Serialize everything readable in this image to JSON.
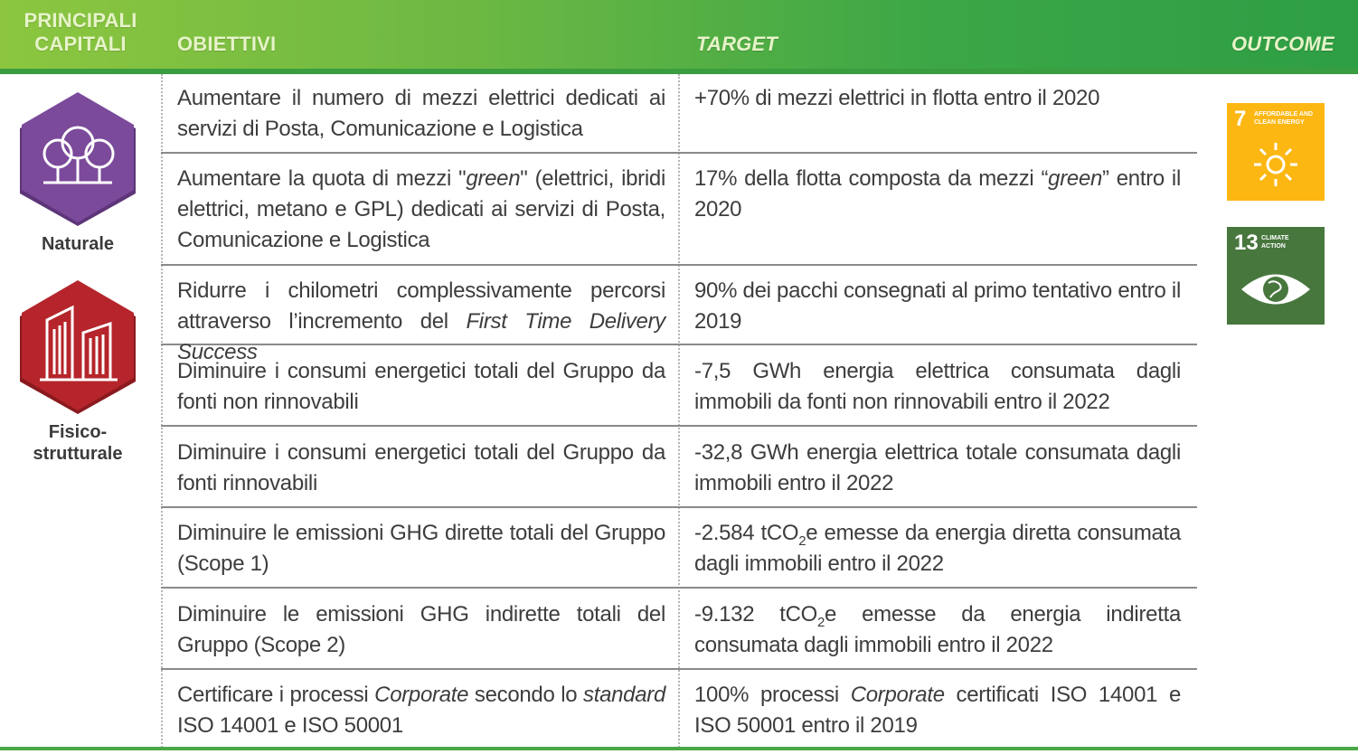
{
  "header": {
    "capitali": "PRINCIPALI CAPITALI",
    "obiettivi": "OBIETTIVI",
    "target": "TARGET",
    "outcome": "OUTCOME"
  },
  "capitals": [
    {
      "label": "Naturale",
      "icon": "trees-icon",
      "color": "#7b4a9b"
    },
    {
      "label": "Fisico-strutturale",
      "icon": "buildings-icon",
      "color": "#b5252b"
    }
  ],
  "rows": [
    {
      "objective": "Aumentare il numero di mezzi elettrici dedicati ai servizi di Posta, Comunicazione e Logistica",
      "target": "+70% di mezzi elettrici in flotta entro il 2020"
    },
    {
      "objective_html": "Aumentare la quota di mezzi \"<i>green</i>\" (elettrici, ibridi elettrici, metano e GPL) dedicati ai servizi di Posta, Comunicazione e Logistica",
      "target_html": "17% della flotta composta da mezzi “<i>green</i>” entro il 2020"
    },
    {
      "objective_html": "Ridurre i chilometri complessivamente percorsi attraverso l’incremento del <i>First Time Delivery Success</i>",
      "target": "90% dei pacchi consegnati al primo tentativo entro il 2019"
    },
    {
      "objective": "Diminuire i consumi energetici totali del Gruppo da fonti non rinnovabili",
      "target": "-7,5 GWh energia elettrica consumata dagli immobili da fonti non rinnovabili entro il 2022"
    },
    {
      "objective": "Diminuire i consumi energetici totali del Gruppo da fonti rinnovabili",
      "target": "-32,8 GWh energia elettrica totale consumata dagli immobili entro il 2022"
    },
    {
      "objective": "Diminuire le emissioni GHG dirette totali del Gruppo (Scope 1)",
      "target_html": "-2.584 tCO<sub>2</sub>e emesse da energia diretta consumata dagli immobili entro il 2022"
    },
    {
      "objective": "Diminuire le emissioni GHG indirette totali del Gruppo (Scope 2)",
      "target_html": "-9.132 tCO<sub>2</sub>e emesse da energia indiretta consumata dagli immobili entro il 2022"
    },
    {
      "objective_html": "Certificare i processi <i>Corporate</i> secondo lo <i>standard</i> ISO 14001 e ISO 50001",
      "target_html": "100% processi <i>Corporate</i> certificati ISO 14001 e ISO 50001 entro il 2019"
    }
  ],
  "sdgs": [
    {
      "number": "7",
      "text": "AFFORDABLE AND CLEAN ENERGY",
      "color": "#fcb713",
      "icon": "sun-icon"
    },
    {
      "number": "13",
      "text": "CLIMATE ACTION",
      "color": "#48773e",
      "icon": "eye-globe-icon"
    }
  ]
}
